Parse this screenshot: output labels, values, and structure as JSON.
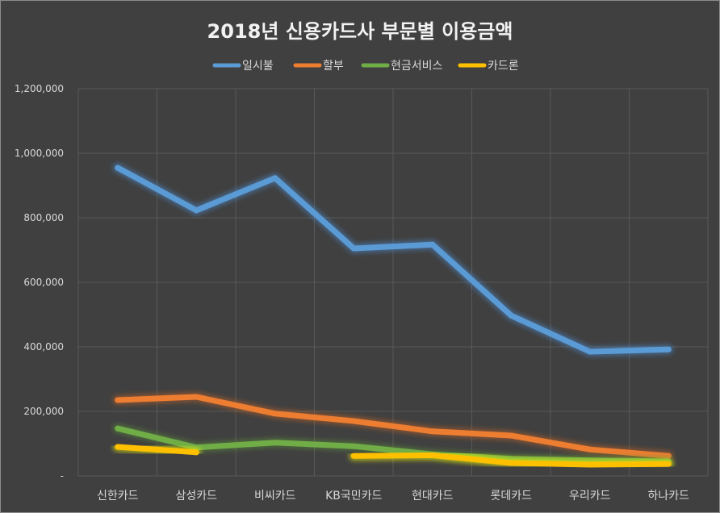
{
  "chart_data": {
    "type": "line",
    "title": "2018년 신용카드사 부문별 이용금액",
    "xlabel": "",
    "ylabel": "",
    "ylim": [
      0,
      1200000
    ],
    "y_ticks": [
      "-",
      "200,000",
      "400,000",
      "600,000",
      "800,000",
      "1,000,000",
      "1,200,000"
    ],
    "y_tick_values": [
      0,
      200000,
      400000,
      600000,
      800000,
      1000000,
      1200000
    ],
    "categories": [
      "신한카드",
      "삼성카드",
      "비씨카드",
      "KB국민카드",
      "현대카드",
      "롯데카드",
      "우리카드",
      "하나카드"
    ],
    "legend_position": "top",
    "series": [
      {
        "name": "일시불",
        "color": "#5b9bd5",
        "glow": "#4a86c8",
        "values": [
          955000,
          823000,
          923000,
          705000,
          717000,
          497000,
          385000,
          392000
        ]
      },
      {
        "name": "할부",
        "color": "#ed7d31",
        "glow": "#c0622a",
        "values": [
          235000,
          245000,
          193000,
          170000,
          138000,
          125000,
          82000,
          62000
        ]
      },
      {
        "name": "현금서비스",
        "color": "#70ad47",
        "glow": "#5a8a3a",
        "values": [
          147000,
          88000,
          103000,
          92000,
          67000,
          53000,
          48000,
          45000
        ]
      },
      {
        "name": "카드론",
        "color": "#ffc000",
        "glow": "#ffff00",
        "values": [
          90000,
          73000,
          null,
          62000,
          64000,
          40000,
          35000,
          37000
        ]
      }
    ]
  }
}
